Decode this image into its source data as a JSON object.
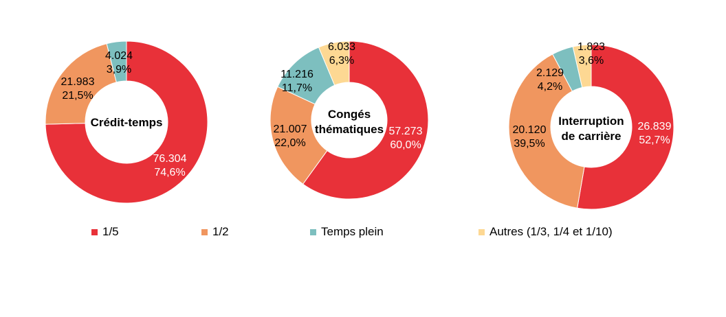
{
  "chart_data": [
    {
      "type": "pie",
      "donut": true,
      "title": "Crédit-temps",
      "categories": [
        "1/5",
        "1/2",
        "Temps plein",
        "Autres (1/3, 1/4 et 1/10)"
      ],
      "values": [
        76304,
        21983,
        4024,
        0
      ],
      "value_labels": [
        "76.304",
        "21.983",
        "4.024",
        ""
      ],
      "percent_labels": [
        "74,6%",
        "21,5%",
        "3,9%",
        ""
      ]
    },
    {
      "type": "pie",
      "donut": true,
      "title": "Congés thématiques",
      "title_lines": [
        "Congés",
        "thématiques"
      ],
      "categories": [
        "1/5",
        "1/2",
        "Temps plein",
        "Autres (1/3, 1/4 et 1/10)"
      ],
      "values": [
        57273,
        21007,
        11216,
        6033
      ],
      "value_labels": [
        "57.273",
        "21.007",
        "11.216",
        "6.033"
      ],
      "percent_labels": [
        "60,0%",
        "22,0%",
        "11,7%",
        "6,3%"
      ]
    },
    {
      "type": "pie",
      "donut": true,
      "title": "Interruption de carrière",
      "title_lines": [
        "Interruption",
        "de carrière"
      ],
      "categories": [
        "1/5",
        "1/2",
        "Temps plein",
        "Autres (1/3, 1/4 et 1/10)"
      ],
      "values": [
        26839,
        20120,
        2129,
        1823
      ],
      "value_labels": [
        "26.839",
        "20.120",
        "2.129",
        "1.823"
      ],
      "percent_labels": [
        "52,7%",
        "39,5%",
        "4,2%",
        "3,6%"
      ]
    }
  ],
  "legend": {
    "position": "bottom",
    "items": [
      {
        "label": "1/5",
        "color": "#E83139"
      },
      {
        "label": "1/2",
        "color": "#F0965F"
      },
      {
        "label": "Temps plein",
        "color": "#7DBFBF"
      },
      {
        "label": "Autres (1/3, 1/4 et 1/10)",
        "color": "#FDD893"
      }
    ]
  }
}
